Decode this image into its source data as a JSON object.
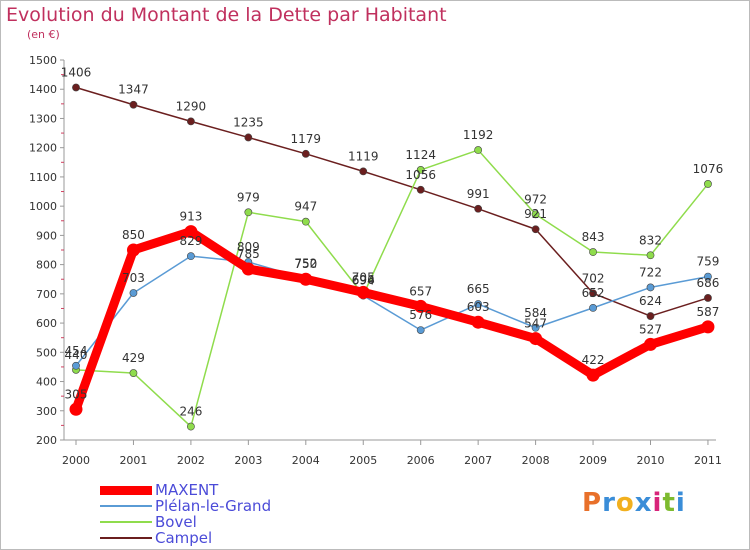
{
  "chart_data": {
    "type": "line",
    "title": "Evolution du Montant de la Dette par Habitant",
    "subtitle": "(en €)",
    "categories": [
      "2000",
      "2001",
      "2002",
      "2003",
      "2004",
      "2005",
      "2006",
      "2007",
      "2008",
      "2009",
      "2010",
      "2011"
    ],
    "y_ticks": [
      "1500",
      "1400",
      "1300",
      "1200",
      "1100",
      "1000",
      "900",
      "800",
      "700",
      "600",
      "500",
      "400",
      "300",
      "200"
    ],
    "ylim": [
      200,
      1500
    ],
    "grid": false,
    "legend_position": "bottom-left",
    "series": [
      {
        "name": "Campel",
        "color": "#6b1f1f",
        "values": [
          1406,
          1347,
          1290,
          1235,
          1179,
          1119,
          1056,
          991,
          921,
          702,
          624,
          686
        ],
        "labels": [
          "1406",
          "1347",
          "1290",
          "1235",
          "1179",
          "1119",
          "1056",
          "991",
          "921",
          "702",
          "624",
          "686"
        ]
      },
      {
        "name": "Bovel",
        "color": "#8fdc4c",
        "values": [
          440,
          429,
          246,
          979,
          947,
          696,
          1124,
          1192,
          972,
          843,
          832,
          1076
        ],
        "labels": [
          "440",
          "429",
          "246",
          "979",
          "947",
          "696",
          "1124",
          "1192",
          "972",
          "843",
          "832",
          "1076"
        ]
      },
      {
        "name": "Plélan-le-Grand",
        "color": "#5a9bd5",
        "values": [
          454,
          703,
          829,
          809,
          752,
          694,
          576,
          665,
          584,
          652,
          722,
          759
        ],
        "labels": [
          "454",
          "703",
          "829",
          "809",
          "752",
          "694",
          "576",
          "665",
          "584",
          "652",
          "722",
          "759"
        ]
      },
      {
        "name": "MAXENT",
        "color": "#ff0000",
        "values": [
          305,
          850,
          913,
          785,
          750,
          705,
          657,
          603,
          547,
          422,
          527,
          587
        ],
        "labels": [
          "305",
          "850",
          "913",
          "785",
          "750",
          "705",
          "657",
          "603",
          "547",
          "422",
          "527",
          "587"
        ]
      }
    ],
    "legend": [
      {
        "name": "MAXENT",
        "color": "#ff0000",
        "thickness": 9
      },
      {
        "name": "Plélan-le-Grand",
        "color": "#5a9bd5",
        "thickness": 2
      },
      {
        "name": "Bovel",
        "color": "#8fdc4c",
        "thickness": 2
      },
      {
        "name": "Campel",
        "color": "#6b1f1f",
        "thickness": 2
      }
    ]
  },
  "logo": {
    "text": "Proxiti",
    "colors": [
      "#e8702a",
      "#3a8dd8",
      "#f2b01e",
      "#3a8dd8",
      "#d8247a",
      "#7dbb2f",
      "#3a8dd8"
    ]
  }
}
